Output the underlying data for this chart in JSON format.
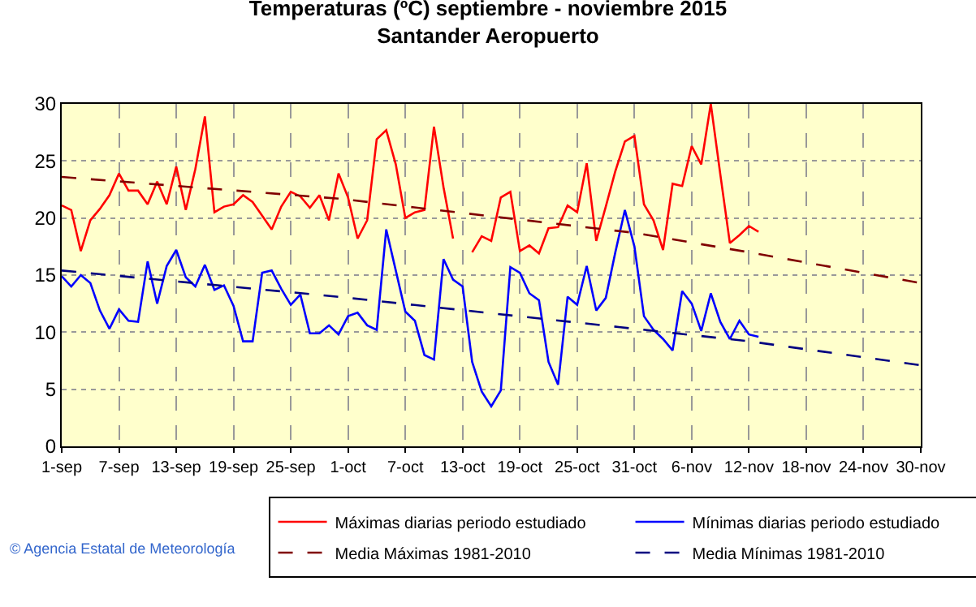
{
  "chart_data": {
    "type": "line",
    "title": "Temperaturas (ºC) septiembre - noviembre 2015",
    "subtitle": "Santander Aeropuerto",
    "x": [
      "2015-09-01",
      "2015-09-02",
      "2015-09-03",
      "2015-09-04",
      "2015-09-05",
      "2015-09-06",
      "2015-09-07",
      "2015-09-08",
      "2015-09-09",
      "2015-09-10",
      "2015-09-11",
      "2015-09-12",
      "2015-09-13",
      "2015-09-14",
      "2015-09-15",
      "2015-09-16",
      "2015-09-17",
      "2015-09-18",
      "2015-09-19",
      "2015-09-20",
      "2015-09-21",
      "2015-09-22",
      "2015-09-23",
      "2015-09-24",
      "2015-09-25",
      "2015-09-26",
      "2015-09-27",
      "2015-09-28",
      "2015-09-29",
      "2015-09-30",
      "2015-10-01",
      "2015-10-02",
      "2015-10-03",
      "2015-10-04",
      "2015-10-05",
      "2015-10-06",
      "2015-10-07",
      "2015-10-08",
      "2015-10-09",
      "2015-10-10",
      "2015-10-11",
      "2015-10-12",
      "2015-10-13",
      "2015-10-14",
      "2015-10-15",
      "2015-10-16",
      "2015-10-17",
      "2015-10-18",
      "2015-10-19",
      "2015-10-20",
      "2015-10-21",
      "2015-10-22",
      "2015-10-23",
      "2015-10-24",
      "2015-10-25",
      "2015-10-26",
      "2015-10-27",
      "2015-10-28",
      "2015-10-29",
      "2015-10-30",
      "2015-10-31",
      "2015-11-01",
      "2015-11-02",
      "2015-11-03",
      "2015-11-04",
      "2015-11-05",
      "2015-11-06",
      "2015-11-07",
      "2015-11-08",
      "2015-11-09",
      "2015-11-10",
      "2015-11-11",
      "2015-11-12",
      "2015-11-13"
    ],
    "series": [
      {
        "name": "Máximas diarias periodo estudiado",
        "color": "#ff0000",
        "line_style": "solid",
        "values": [
          21.1,
          20.7,
          17.1,
          19.8,
          20.8,
          22.0,
          23.9,
          22.4,
          22.4,
          21.2,
          23.2,
          21.2,
          24.5,
          20.7,
          24.3,
          28.9,
          20.5,
          21.0,
          21.2,
          22.0,
          21.4,
          20.2,
          19.0,
          21.0,
          22.3,
          21.9,
          20.9,
          22.0,
          19.8,
          23.9,
          21.8,
          18.2,
          19.8,
          26.9,
          27.7,
          24.7,
          20.0,
          20.5,
          20.7,
          28.0,
          22.7,
          18.2,
          null,
          17.0,
          18.4,
          18.0,
          21.8,
          22.3,
          17.1,
          17.6,
          16.9,
          19.1,
          19.2,
          21.1,
          20.5,
          24.8,
          18.0,
          21.0,
          24.1,
          26.7,
          27.2,
          21.2,
          19.8,
          17.2,
          23.0,
          22.8,
          26.3,
          24.7,
          30.0,
          23.8,
          17.8,
          18.5,
          19.3,
          18.8
        ]
      },
      {
        "name": "Mínimas diarias periodo estudiado",
        "color": "#0000ff",
        "line_style": "solid",
        "values": [
          14.9,
          14.0,
          15.0,
          14.3,
          11.9,
          10.3,
          12.0,
          11.0,
          10.9,
          16.2,
          12.5,
          15.8,
          17.2,
          14.8,
          14.0,
          15.9,
          13.7,
          14.1,
          12.3,
          9.2,
          9.2,
          15.2,
          15.4,
          13.8,
          12.4,
          13.3,
          9.9,
          9.9,
          10.6,
          9.8,
          11.4,
          11.7,
          10.6,
          10.2,
          19.0,
          15.4,
          11.8,
          11.0,
          8.0,
          7.6,
          16.4,
          14.6,
          14.0,
          7.4,
          4.8,
          3.5,
          4.9,
          15.7,
          15.2,
          13.4,
          12.8,
          7.4,
          5.4,
          13.1,
          12.4,
          15.8,
          11.9,
          13.0,
          17.0,
          20.7,
          17.5,
          11.4,
          10.2,
          9.4,
          8.4,
          13.6,
          12.5,
          10.1,
          13.4,
          10.9,
          9.4,
          11.0,
          9.8,
          9.6
        ]
      },
      {
        "name": "Media Máximas 1981-2010",
        "color": "#800000",
        "line_style": "dashed",
        "x": [
          "2015-09-01",
          "2015-09-30",
          "2015-10-31",
          "2015-11-12",
          "2015-11-30"
        ],
        "values": [
          23.6,
          21.7,
          18.7,
          17.0,
          14.3
        ]
      },
      {
        "name": "Media Mínimas 1981-2010",
        "color": "#000080",
        "line_style": "dashed",
        "x": [
          "2015-09-01",
          "2015-09-30",
          "2015-10-31",
          "2015-11-12",
          "2015-11-30"
        ],
        "values": [
          15.4,
          13.1,
          10.3,
          9.2,
          7.1
        ]
      }
    ],
    "xlim": [
      "2015-09-01",
      "2015-11-30"
    ],
    "xticks": [
      {
        "value": "2015-09-01",
        "label": "1-sep"
      },
      {
        "value": "2015-09-07",
        "label": "7-sep"
      },
      {
        "value": "2015-09-13",
        "label": "13-sep"
      },
      {
        "value": "2015-09-19",
        "label": "19-sep"
      },
      {
        "value": "2015-09-25",
        "label": "25-sep"
      },
      {
        "value": "2015-10-01",
        "label": "1-oct"
      },
      {
        "value": "2015-10-07",
        "label": "7-oct"
      },
      {
        "value": "2015-10-13",
        "label": "13-oct"
      },
      {
        "value": "2015-10-19",
        "label": "19-oct"
      },
      {
        "value": "2015-10-25",
        "label": "25-oct"
      },
      {
        "value": "2015-10-31",
        "label": "31-oct"
      },
      {
        "value": "2015-11-06",
        "label": "6-nov"
      },
      {
        "value": "2015-11-12",
        "label": "12-nov"
      },
      {
        "value": "2015-11-18",
        "label": "18-nov"
      },
      {
        "value": "2015-11-24",
        "label": "24-nov"
      },
      {
        "value": "2015-11-30",
        "label": "30-nov"
      }
    ],
    "ylim": [
      0,
      30
    ],
    "yticks": [
      0,
      5,
      10,
      15,
      20,
      25,
      30
    ],
    "grid": true,
    "legend": "bottom",
    "marker": "none",
    "annotations": [
      "© Agencia Estatal de Meteorología"
    ]
  }
}
